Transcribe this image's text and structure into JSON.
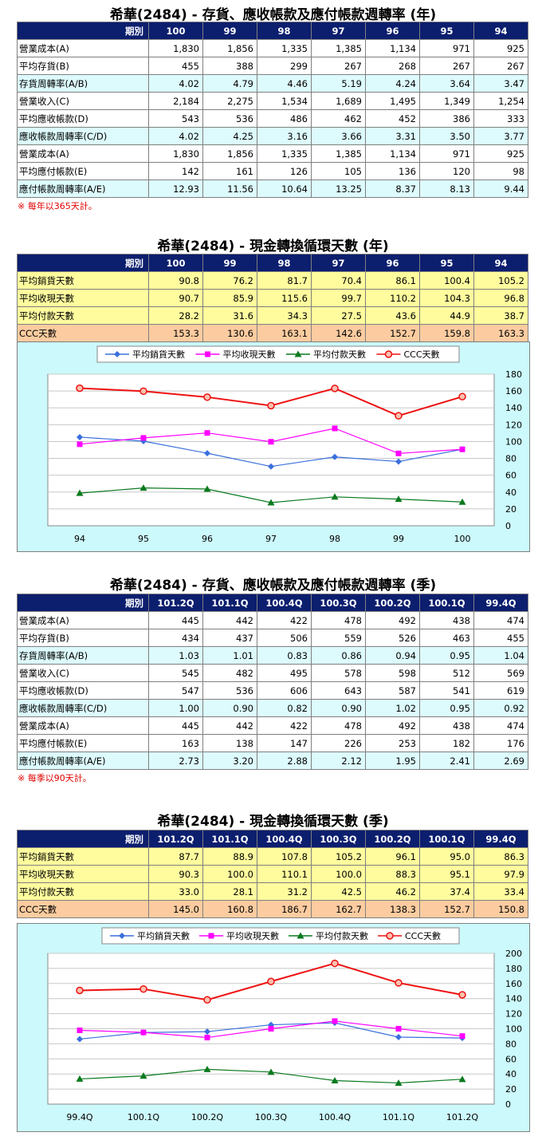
{
  "sections": [
    {
      "kind": "turnover",
      "title": "希華(2484) -  存貨、應收帳款及應付帳款週轉率 (年)",
      "header_label": "期別",
      "periods": [
        "100",
        "99",
        "98",
        "97",
        "96",
        "95",
        "94"
      ],
      "rows": [
        {
          "label": "營業成本(A)",
          "values": [
            "1,830",
            "1,856",
            "1,335",
            "1,385",
            "1,134",
            "971",
            "925"
          ],
          "style": "w"
        },
        {
          "label": "平均存貨(B)",
          "values": [
            "455",
            "388",
            "299",
            "267",
            "268",
            "267",
            "267"
          ],
          "style": "w"
        },
        {
          "label": "存貨周轉率(A/B)",
          "values": [
            "4.02",
            "4.79",
            "4.46",
            "5.19",
            "4.24",
            "3.64",
            "3.47"
          ],
          "style": "c"
        },
        {
          "label": "營業收入(C)",
          "values": [
            "2,184",
            "2,275",
            "1,534",
            "1,689",
            "1,495",
            "1,349",
            "1,254"
          ],
          "style": "w"
        },
        {
          "label": "平均應收帳款(D)",
          "values": [
            "543",
            "536",
            "486",
            "462",
            "452",
            "386",
            "333"
          ],
          "style": "w"
        },
        {
          "label": "應收帳款周轉率(C/D)",
          "values": [
            "4.02",
            "4.25",
            "3.16",
            "3.66",
            "3.31",
            "3.50",
            "3.77"
          ],
          "style": "c"
        },
        {
          "label": "營業成本(A)",
          "values": [
            "1,830",
            "1,856",
            "1,335",
            "1,385",
            "1,134",
            "971",
            "925"
          ],
          "style": "w"
        },
        {
          "label": "平均應付帳款(E)",
          "values": [
            "142",
            "161",
            "126",
            "105",
            "136",
            "120",
            "98"
          ],
          "style": "w"
        },
        {
          "label": "應付帳款周轉率(A/E)",
          "values": [
            "12.93",
            "11.56",
            "10.64",
            "13.25",
            "8.37",
            "8.13",
            "9.44"
          ],
          "style": "c"
        }
      ],
      "note": "※ 每年以365天計。"
    },
    {
      "kind": "ccc",
      "title": "希華(2484) -  現金轉換循環天數 (年)",
      "header_label": "期別",
      "periods": [
        "100",
        "99",
        "98",
        "97",
        "96",
        "95",
        "94"
      ],
      "rows": [
        {
          "label": "平均銷貨天數",
          "values": [
            "90.8",
            "76.2",
            "81.7",
            "70.4",
            "86.1",
            "100.4",
            "105.2"
          ],
          "style": "y"
        },
        {
          "label": "平均收現天數",
          "values": [
            "90.7",
            "85.9",
            "115.6",
            "99.7",
            "110.2",
            "104.3",
            "96.8"
          ],
          "style": "y"
        },
        {
          "label": "平均付款天數",
          "values": [
            "28.2",
            "31.6",
            "34.3",
            "27.5",
            "43.6",
            "44.9",
            "38.7"
          ],
          "style": "y"
        },
        {
          "label": "CCC天數",
          "values": [
            "153.3",
            "130.6",
            "163.1",
            "142.6",
            "152.7",
            "159.8",
            "163.3"
          ],
          "style": "o"
        }
      ]
    },
    {
      "kind": "turnover",
      "title": "希華(2484) -  存貨、應收帳款及應付帳款週轉率 (季)",
      "header_label": "期別",
      "periods": [
        "101.2Q",
        "101.1Q",
        "100.4Q",
        "100.3Q",
        "100.2Q",
        "100.1Q",
        "99.4Q"
      ],
      "rows": [
        {
          "label": "營業成本(A)",
          "values": [
            "445",
            "442",
            "422",
            "478",
            "492",
            "438",
            "474"
          ],
          "style": "w"
        },
        {
          "label": "平均存貨(B)",
          "values": [
            "434",
            "437",
            "506",
            "559",
            "526",
            "463",
            "455"
          ],
          "style": "w"
        },
        {
          "label": "存貨周轉率(A/B)",
          "values": [
            "1.03",
            "1.01",
            "0.83",
            "0.86",
            "0.94",
            "0.95",
            "1.04"
          ],
          "style": "c"
        },
        {
          "label": "營業收入(C)",
          "values": [
            "545",
            "482",
            "495",
            "578",
            "598",
            "512",
            "569"
          ],
          "style": "w"
        },
        {
          "label": "平均應收帳款(D)",
          "values": [
            "547",
            "536",
            "606",
            "643",
            "587",
            "541",
            "619"
          ],
          "style": "w"
        },
        {
          "label": "應收帳款周轉率(C/D)",
          "values": [
            "1.00",
            "0.90",
            "0.82",
            "0.90",
            "1.02",
            "0.95",
            "0.92"
          ],
          "style": "c"
        },
        {
          "label": "營業成本(A)",
          "values": [
            "445",
            "442",
            "422",
            "478",
            "492",
            "438",
            "474"
          ],
          "style": "w"
        },
        {
          "label": "平均應付帳款(E)",
          "values": [
            "163",
            "138",
            "147",
            "226",
            "253",
            "182",
            "176"
          ],
          "style": "w"
        },
        {
          "label": "應付帳款周轉率(A/E)",
          "values": [
            "2.73",
            "3.20",
            "2.88",
            "2.12",
            "1.95",
            "2.41",
            "2.69"
          ],
          "style": "c"
        }
      ],
      "note": "※ 每季以90天計。"
    },
    {
      "kind": "ccc",
      "title": "希華(2484) -  現金轉換循環天數 (季)",
      "header_label": "期別",
      "periods": [
        "101.2Q",
        "101.1Q",
        "100.4Q",
        "100.3Q",
        "100.2Q",
        "100.1Q",
        "99.4Q"
      ],
      "rows": [
        {
          "label": "平均銷貨天數",
          "values": [
            "87.7",
            "88.9",
            "107.8",
            "105.2",
            "96.1",
            "95.0",
            "86.3"
          ],
          "style": "y"
        },
        {
          "label": "平均收現天數",
          "values": [
            "90.3",
            "100.0",
            "110.1",
            "100.0",
            "88.3",
            "95.1",
            "97.9"
          ],
          "style": "y"
        },
        {
          "label": "平均付款天數",
          "values": [
            "33.0",
            "28.1",
            "31.2",
            "42.5",
            "46.2",
            "37.4",
            "33.4"
          ],
          "style": "y"
        },
        {
          "label": "CCC天數",
          "values": [
            "145.0",
            "160.8",
            "186.7",
            "162.7",
            "138.3",
            "152.7",
            "150.8"
          ],
          "style": "o"
        }
      ]
    }
  ],
  "chart_data": [
    {
      "type": "line",
      "categories": [
        "94",
        "95",
        "96",
        "97",
        "98",
        "99",
        "100"
      ],
      "ylim": [
        0,
        180
      ],
      "yticks": [
        0,
        20,
        40,
        60,
        80,
        100,
        120,
        140,
        160,
        180
      ],
      "grid": true,
      "legend_position": "top",
      "series": [
        {
          "name": "平均銷貨天數",
          "values": [
            105.2,
            100.4,
            86.1,
            70.4,
            81.7,
            76.2,
            90.8
          ],
          "color": "#3a6fdc",
          "marker": "diamond"
        },
        {
          "name": "平均收現天數",
          "values": [
            96.8,
            104.3,
            110.2,
            99.7,
            115.6,
            85.9,
            90.7
          ],
          "color": "#ff00ff",
          "marker": "square"
        },
        {
          "name": "平均付款天數",
          "values": [
            38.7,
            44.9,
            43.6,
            27.5,
            34.3,
            31.6,
            28.2
          ],
          "color": "#0a7a1e",
          "marker": "triangle"
        },
        {
          "name": "CCC天數",
          "values": [
            163.3,
            159.8,
            152.7,
            142.6,
            163.1,
            130.6,
            153.3
          ],
          "color": "#ee1111",
          "marker": "circle"
        }
      ]
    },
    {
      "type": "line",
      "categories": [
        "99.4Q",
        "100.1Q",
        "100.2Q",
        "100.3Q",
        "100.4Q",
        "101.1Q",
        "101.2Q"
      ],
      "ylim": [
        0,
        200
      ],
      "yticks": [
        0,
        20,
        40,
        60,
        80,
        100,
        120,
        140,
        160,
        180,
        200
      ],
      "grid": true,
      "legend_position": "top",
      "series": [
        {
          "name": "平均銷貨天數",
          "values": [
            86.3,
            95.0,
            96.1,
            105.2,
            107.8,
            88.9,
            87.7
          ],
          "color": "#3a6fdc",
          "marker": "diamond"
        },
        {
          "name": "平均收現天數",
          "values": [
            97.9,
            95.1,
            88.3,
            100.0,
            110.1,
            100.0,
            90.3
          ],
          "color": "#ff00ff",
          "marker": "square"
        },
        {
          "name": "平均付款天數",
          "values": [
            33.4,
            37.4,
            46.2,
            42.5,
            31.2,
            28.1,
            33.0
          ],
          "color": "#0a7a1e",
          "marker": "triangle"
        },
        {
          "name": "CCC天數",
          "values": [
            150.8,
            152.7,
            138.3,
            162.7,
            186.7,
            160.8,
            145.0
          ],
          "color": "#ee1111",
          "marker": "circle"
        }
      ]
    }
  ]
}
